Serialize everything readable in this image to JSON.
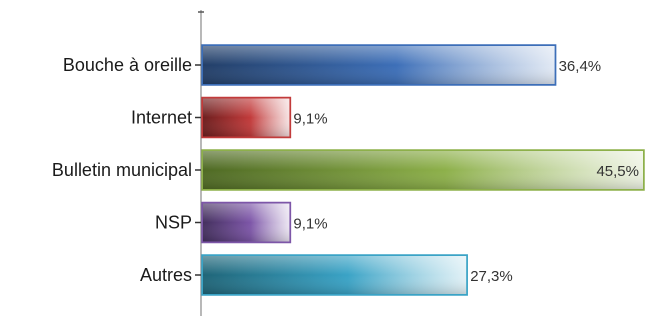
{
  "chart_data": {
    "type": "bar",
    "orientation": "horizontal",
    "title": "",
    "xlabel": "",
    "ylabel": "",
    "categories": [
      "Bouche à oreille",
      "Internet",
      "Bulletin municipal",
      "NSP",
      "Autres"
    ],
    "values": [
      36.4,
      9.1,
      45.5,
      9.1,
      27.3
    ],
    "value_labels": [
      "36,4%",
      "9,1%",
      "45,5%",
      "9,1%",
      "27,3%"
    ],
    "xlim": [
      0,
      45.5
    ],
    "unit": "%",
    "grid": false,
    "legend": "none",
    "colors": [
      "#3d6fb8",
      "#c23b3b",
      "#8db04a",
      "#7d56a8",
      "#3aa3c6"
    ],
    "colors_dark": [
      "#233f68",
      "#6e1f1f",
      "#4f6a24",
      "#44305e",
      "#1f6578"
    ]
  }
}
